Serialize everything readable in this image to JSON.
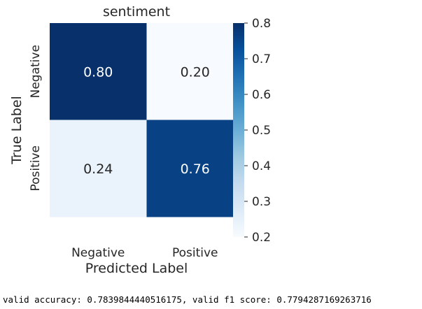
{
  "chart_data": {
    "type": "heatmap",
    "title": "sentiment",
    "xlabel": "Predicted Label",
    "ylabel": "True Label",
    "x_categories": [
      "Negative",
      "Positive"
    ],
    "y_categories": [
      "Negative",
      "Positive"
    ],
    "values": [
      [
        0.8,
        0.2
      ],
      [
        0.24,
        0.76
      ]
    ],
    "value_labels": [
      [
        "0.80",
        "0.20"
      ],
      [
        "0.24",
        "0.76"
      ]
    ],
    "colormap": "Blues",
    "colorbar": {
      "min": 0.2,
      "max": 0.8,
      "ticks": [
        "0.2",
        "0.3",
        "0.4",
        "0.5",
        "0.6",
        "0.7",
        "0.8"
      ]
    }
  },
  "footer_text": "valid accuracy: 0.7839844440516175, valid f1 score: 0.7794287169263716"
}
